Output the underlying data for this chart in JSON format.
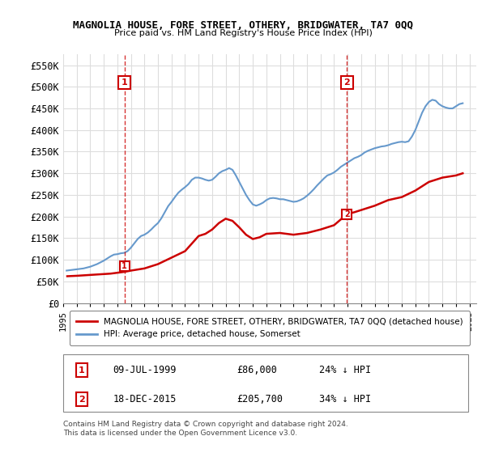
{
  "title": "MAGNOLIA HOUSE, FORE STREET, OTHERY, BRIDGWATER, TA7 0QQ",
  "subtitle": "Price paid vs. HM Land Registry's House Price Index (HPI)",
  "ylabel_ticks": [
    "£0",
    "£50K",
    "£100K",
    "£150K",
    "£200K",
    "£250K",
    "£300K",
    "£350K",
    "£400K",
    "£450K",
    "£500K",
    "£550K"
  ],
  "ytick_values": [
    0,
    50000,
    100000,
    150000,
    200000,
    250000,
    300000,
    350000,
    400000,
    450000,
    500000,
    550000
  ],
  "ylim": [
    0,
    575000
  ],
  "xlim_start": 1995.0,
  "xlim_end": 2025.5,
  "hpi_color": "#6699cc",
  "price_color": "#cc0000",
  "annotation_color": "#cc0000",
  "dashed_line_color": "#cc0000",
  "grid_color": "#dddddd",
  "background_color": "#ffffff",
  "legend_label_red": "MAGNOLIA HOUSE, FORE STREET, OTHERY, BRIDGWATER, TA7 0QQ (detached house)",
  "legend_label_blue": "HPI: Average price, detached house, Somerset",
  "sale1_label": "1",
  "sale1_date": "09-JUL-1999",
  "sale1_price": "£86,000",
  "sale1_note": "24% ↓ HPI",
  "sale1_x": 1999.52,
  "sale1_y": 86000,
  "sale2_label": "2",
  "sale2_date": "18-DEC-2015",
  "sale2_price": "£205,700",
  "sale2_note": "34% ↓ HPI",
  "sale2_x": 2015.96,
  "sale2_y": 205700,
  "footnote": "Contains HM Land Registry data © Crown copyright and database right 2024.\nThis data is licensed under the Open Government Licence v3.0.",
  "hpi_data": {
    "years": [
      1995.25,
      1995.5,
      1995.75,
      1996.0,
      1996.25,
      1996.5,
      1996.75,
      1997.0,
      1997.25,
      1997.5,
      1997.75,
      1998.0,
      1998.25,
      1998.5,
      1998.75,
      1999.0,
      1999.25,
      1999.5,
      1999.75,
      2000.0,
      2000.25,
      2000.5,
      2000.75,
      2001.0,
      2001.25,
      2001.5,
      2001.75,
      2002.0,
      2002.25,
      2002.5,
      2002.75,
      2003.0,
      2003.25,
      2003.5,
      2003.75,
      2004.0,
      2004.25,
      2004.5,
      2004.75,
      2005.0,
      2005.25,
      2005.5,
      2005.75,
      2006.0,
      2006.25,
      2006.5,
      2006.75,
      2007.0,
      2007.25,
      2007.5,
      2007.75,
      2008.0,
      2008.25,
      2008.5,
      2008.75,
      2009.0,
      2009.25,
      2009.5,
      2009.75,
      2010.0,
      2010.25,
      2010.5,
      2010.75,
      2011.0,
      2011.25,
      2011.5,
      2011.75,
      2012.0,
      2012.25,
      2012.5,
      2012.75,
      2013.0,
      2013.25,
      2013.5,
      2013.75,
      2014.0,
      2014.25,
      2014.5,
      2014.75,
      2015.0,
      2015.25,
      2015.5,
      2015.75,
      2016.0,
      2016.25,
      2016.5,
      2016.75,
      2017.0,
      2017.25,
      2017.5,
      2017.75,
      2018.0,
      2018.25,
      2018.5,
      2018.75,
      2019.0,
      2019.25,
      2019.5,
      2019.75,
      2020.0,
      2020.25,
      2020.5,
      2020.75,
      2021.0,
      2021.25,
      2021.5,
      2021.75,
      2022.0,
      2022.25,
      2022.5,
      2022.75,
      2023.0,
      2023.25,
      2023.5,
      2023.75,
      2024.0,
      2024.25,
      2024.5
    ],
    "values": [
      75000,
      76000,
      77000,
      78000,
      79000,
      80000,
      82000,
      84000,
      87000,
      90000,
      94000,
      98000,
      103000,
      108000,
      112000,
      113000,
      115000,
      116000,
      120000,
      128000,
      138000,
      148000,
      155000,
      158000,
      163000,
      170000,
      178000,
      185000,
      196000,
      210000,
      224000,
      234000,
      245000,
      255000,
      262000,
      268000,
      275000,
      285000,
      290000,
      290000,
      288000,
      285000,
      283000,
      285000,
      292000,
      300000,
      305000,
      308000,
      312000,
      308000,
      295000,
      280000,
      265000,
      250000,
      238000,
      228000,
      225000,
      228000,
      232000,
      238000,
      242000,
      243000,
      242000,
      240000,
      240000,
      238000,
      236000,
      234000,
      235000,
      238000,
      242000,
      248000,
      255000,
      263000,
      272000,
      280000,
      288000,
      295000,
      298000,
      302000,
      308000,
      315000,
      320000,
      325000,
      330000,
      335000,
      338000,
      342000,
      348000,
      352000,
      355000,
      358000,
      360000,
      362000,
      363000,
      365000,
      368000,
      370000,
      372000,
      373000,
      372000,
      374000,
      385000,
      400000,
      420000,
      440000,
      455000,
      465000,
      470000,
      468000,
      460000,
      455000,
      452000,
      450000,
      450000,
      455000,
      460000,
      462000
    ]
  },
  "price_data": {
    "years": [
      1995.3,
      1996.0,
      1997.0,
      1998.0,
      1998.5,
      1999.0,
      1999.5,
      2000.0,
      2001.0,
      2002.0,
      2003.0,
      2004.0,
      2005.0,
      2005.5,
      2006.0,
      2006.5,
      2007.0,
      2007.5,
      2008.0,
      2008.5,
      2009.0,
      2009.5,
      2010.0,
      2011.0,
      2012.0,
      2013.0,
      2014.0,
      2015.0,
      2015.96,
      2016.5,
      2017.0,
      2018.0,
      2019.0,
      2020.0,
      2021.0,
      2022.0,
      2023.0,
      2024.0,
      2024.5
    ],
    "values": [
      62000,
      63000,
      65000,
      67000,
      68000,
      70000,
      72000,
      75000,
      80000,
      90000,
      105000,
      120000,
      155000,
      160000,
      170000,
      185000,
      195000,
      190000,
      175000,
      158000,
      148000,
      152000,
      160000,
      162000,
      158000,
      162000,
      170000,
      180000,
      205700,
      210000,
      215000,
      225000,
      238000,
      245000,
      260000,
      280000,
      290000,
      295000,
      300000
    ]
  },
  "xtick_years": [
    1995,
    1996,
    1997,
    1998,
    1999,
    2000,
    2001,
    2002,
    2003,
    2004,
    2005,
    2006,
    2007,
    2008,
    2009,
    2010,
    2011,
    2012,
    2013,
    2014,
    2015,
    2016,
    2017,
    2018,
    2019,
    2020,
    2021,
    2022,
    2023,
    2024,
    2025
  ]
}
